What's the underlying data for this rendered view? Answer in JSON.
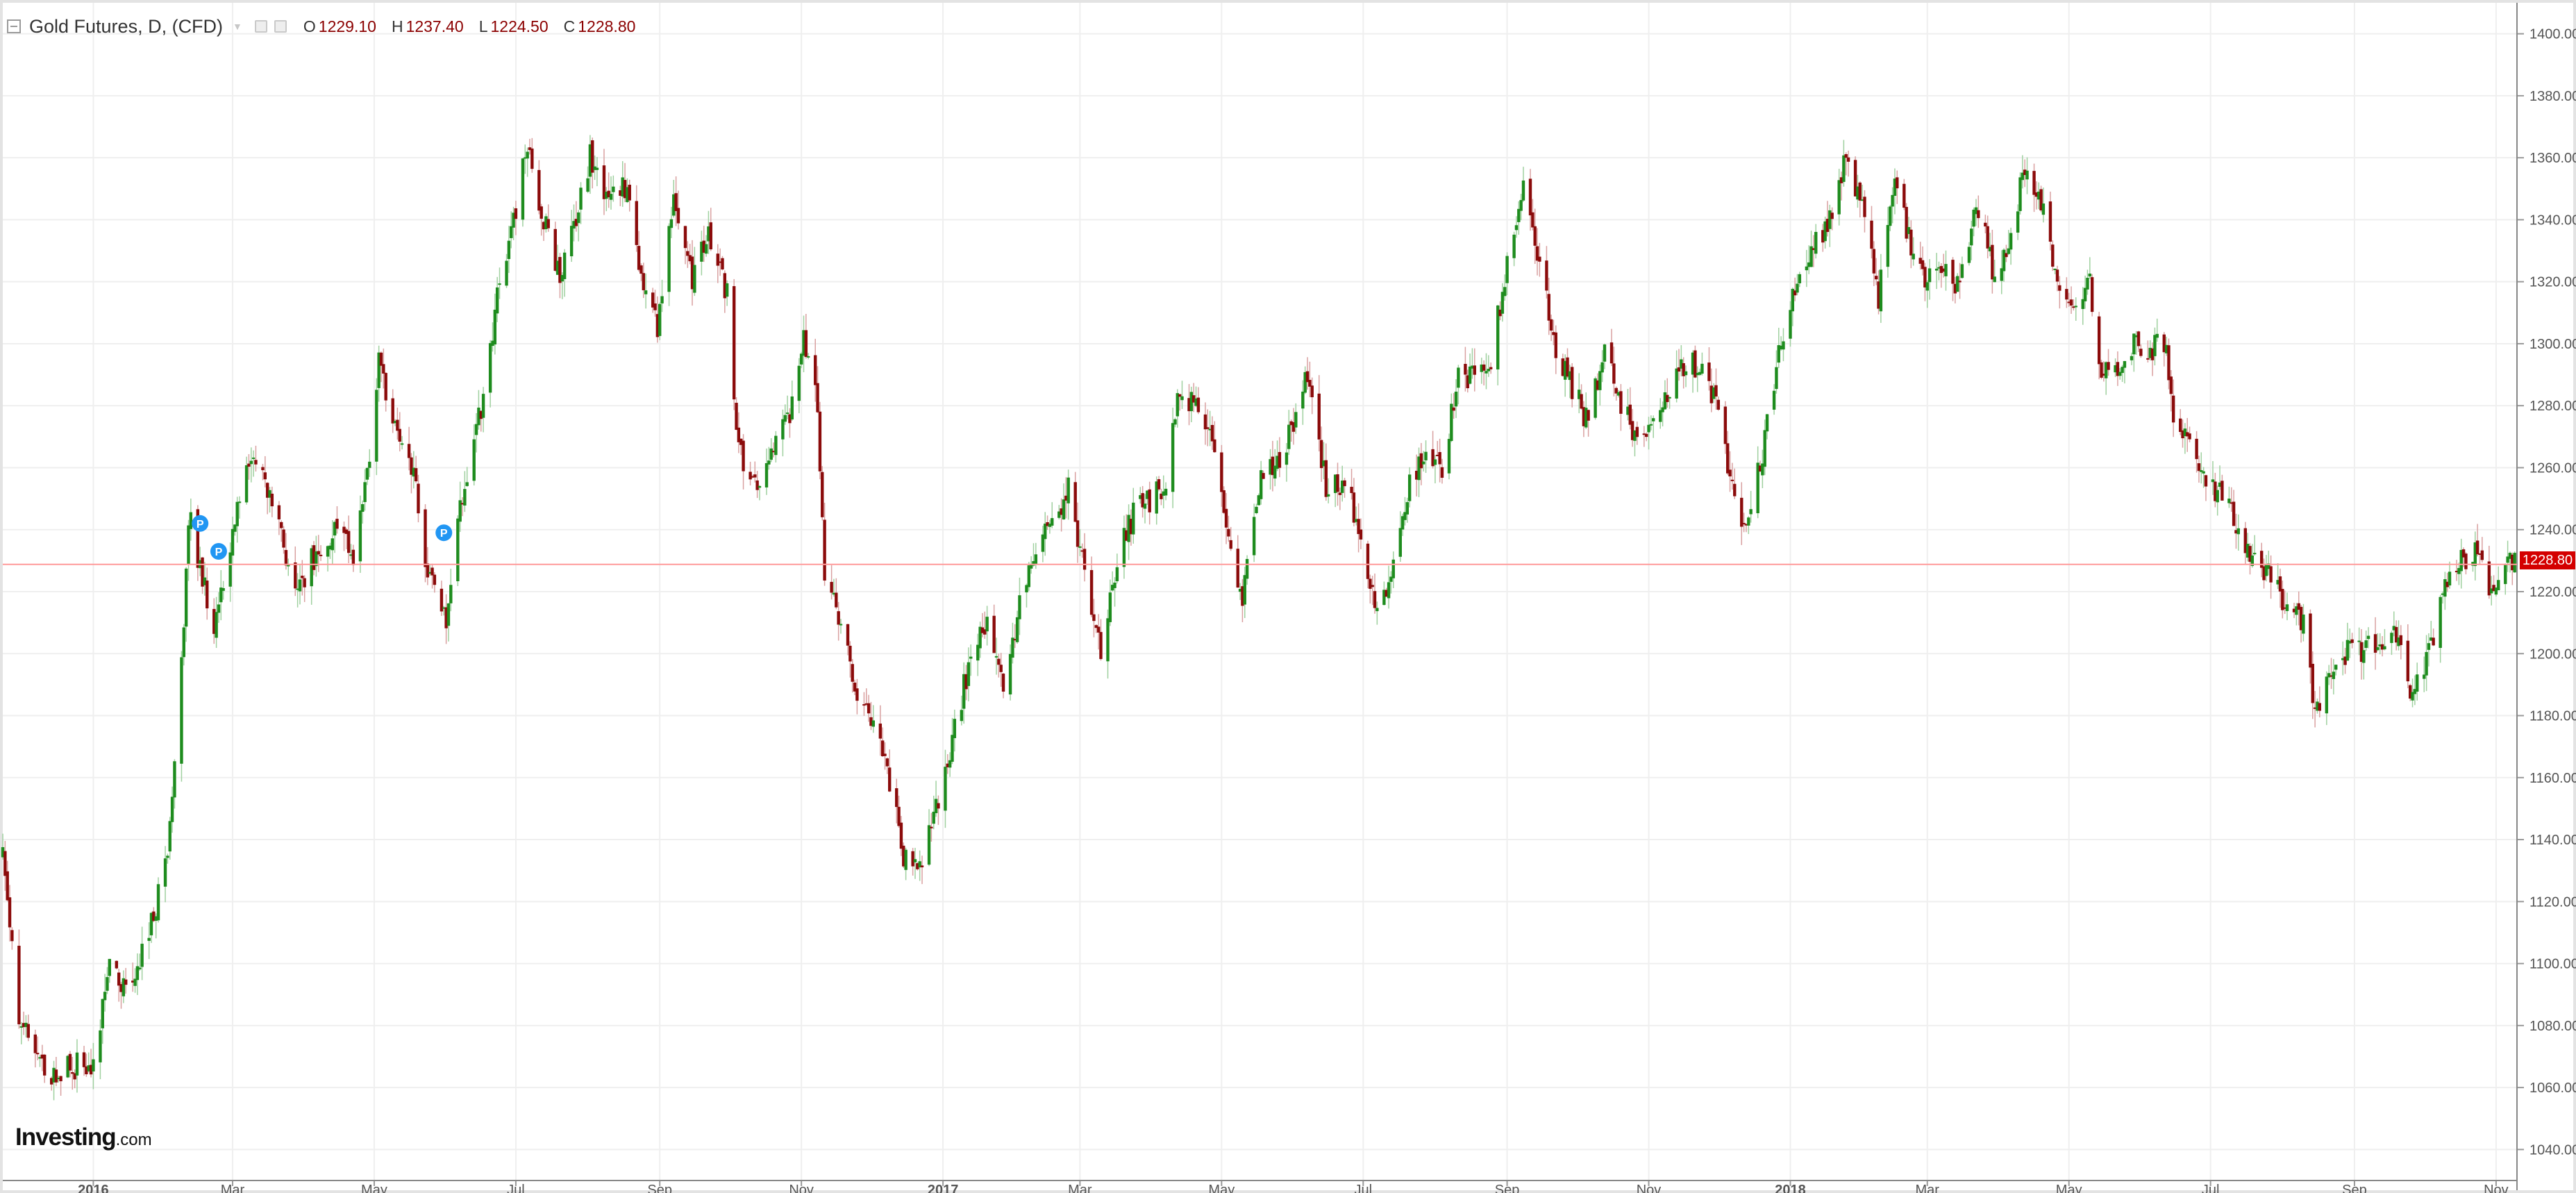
{
  "header": {
    "symbol_label": "Gold Futures, D, (CFD)",
    "ohlc": {
      "o_label": "O",
      "o": "1229.10",
      "h_label": "H",
      "h": "1237.40",
      "l_label": "L",
      "l": "1224.50",
      "c_label": "C",
      "c": "1228.80"
    }
  },
  "logo": {
    "main": "Investing",
    "domain": ".com"
  },
  "colors": {
    "up": "#1e8c1e",
    "down": "#8b0b0b",
    "grid": "#efefef",
    "axis": "#555555",
    "last_line": "#ff9b9b",
    "last_tag": "#d40000",
    "marker": "#2196f3"
  },
  "last_price": "1228.80",
  "markers": [
    {
      "label": "P",
      "date": "2016-02-16",
      "price": 1242
    },
    {
      "label": "P",
      "date": "2016-02-24",
      "price": 1233
    },
    {
      "label": "P",
      "date": "2016-05-31",
      "price": 1239
    }
  ],
  "chart_data": {
    "type": "ohlc",
    "title": "Gold Futures, D, (CFD)",
    "interval": "daily",
    "y_axis": {
      "position": "right",
      "range": [
        1030,
        1410
      ],
      "ticks": [
        "1040.00",
        "1060.00",
        "1080.00",
        "1100.00",
        "1120.00",
        "1140.00",
        "1160.00",
        "1180.00",
        "1200.00",
        "1220.00",
        "1240.00",
        "1260.00",
        "1280.00",
        "1300.00",
        "1320.00",
        "1340.00",
        "1360.00",
        "1380.00",
        "1400.00"
      ]
    },
    "x_axis": {
      "range": [
        "2015-11-23",
        "2018-11-10"
      ],
      "ticks": [
        {
          "label": "2016",
          "date": "2016-01-01",
          "bold": true
        },
        {
          "label": "Mar",
          "date": "2016-03-01"
        },
        {
          "label": "May",
          "date": "2016-05-01"
        },
        {
          "label": "Jul",
          "date": "2016-07-01"
        },
        {
          "label": "Sep",
          "date": "2016-09-01"
        },
        {
          "label": "Nov",
          "date": "2016-11-01"
        },
        {
          "label": "2017",
          "date": "2017-01-01",
          "bold": true
        },
        {
          "label": "Mar",
          "date": "2017-03-01"
        },
        {
          "label": "May",
          "date": "2017-05-01"
        },
        {
          "label": "Jul",
          "date": "2017-07-01"
        },
        {
          "label": "Sep",
          "date": "2017-09-01"
        },
        {
          "label": "Nov",
          "date": "2017-11-01"
        },
        {
          "label": "2018",
          "date": "2018-01-01",
          "bold": true
        },
        {
          "label": "Mar",
          "date": "2018-03-01"
        },
        {
          "label": "May",
          "date": "2018-05-01"
        },
        {
          "label": "Jul",
          "date": "2018-07-01"
        },
        {
          "label": "Sep",
          "date": "2018-09-01"
        },
        {
          "label": "Nov",
          "date": "2018-11-01"
        }
      ]
    },
    "grid": true,
    "price_path": [
      [
        "2015-11-23",
        1135
      ],
      [
        "2015-11-30",
        1080
      ],
      [
        "2015-12-07",
        1075
      ],
      [
        "2015-12-14",
        1062
      ],
      [
        "2015-12-21",
        1068
      ],
      [
        "2015-12-31",
        1065
      ],
      [
        "2016-01-08",
        1100
      ],
      [
        "2016-01-15",
        1090
      ],
      [
        "2016-01-25",
        1110
      ],
      [
        "2016-02-01",
        1130
      ],
      [
        "2016-02-08",
        1195
      ],
      [
        "2016-02-11",
        1245
      ],
      [
        "2016-02-15",
        1230
      ],
      [
        "2016-02-22",
        1210
      ],
      [
        "2016-02-29",
        1235
      ],
      [
        "2016-03-08",
        1262
      ],
      [
        "2016-03-14",
        1255
      ],
      [
        "2016-03-21",
        1240
      ],
      [
        "2016-03-28",
        1220
      ],
      [
        "2016-04-04",
        1230
      ],
      [
        "2016-04-14",
        1240
      ],
      [
        "2016-04-22",
        1232
      ],
      [
        "2016-04-29",
        1260
      ],
      [
        "2016-05-03",
        1295
      ],
      [
        "2016-05-09",
        1275
      ],
      [
        "2016-05-18",
        1260
      ],
      [
        "2016-05-24",
        1225
      ],
      [
        "2016-06-01",
        1210
      ],
      [
        "2016-06-07",
        1245
      ],
      [
        "2016-06-16",
        1280
      ],
      [
        "2016-06-24",
        1320
      ],
      [
        "2016-06-30",
        1340
      ],
      [
        "2016-07-06",
        1365
      ],
      [
        "2016-07-13",
        1340
      ],
      [
        "2016-07-20",
        1320
      ],
      [
        "2016-07-27",
        1340
      ],
      [
        "2016-08-02",
        1360
      ],
      [
        "2016-08-10",
        1345
      ],
      [
        "2016-08-17",
        1350
      ],
      [
        "2016-08-25",
        1320
      ],
      [
        "2016-08-31",
        1305
      ],
      [
        "2016-09-07",
        1345
      ],
      [
        "2016-09-15",
        1320
      ],
      [
        "2016-09-22",
        1335
      ],
      [
        "2016-09-30",
        1315
      ],
      [
        "2016-10-05",
        1265
      ],
      [
        "2016-10-12",
        1255
      ],
      [
        "2016-10-19",
        1265
      ],
      [
        "2016-10-26",
        1275
      ],
      [
        "2016-11-02",
        1300
      ],
      [
        "2016-11-08",
        1280
      ],
      [
        "2016-11-11",
        1225
      ],
      [
        "2016-11-18",
        1210
      ],
      [
        "2016-11-25",
        1185
      ],
      [
        "2016-12-02",
        1175
      ],
      [
        "2016-12-09",
        1160
      ],
      [
        "2016-12-15",
        1135
      ],
      [
        "2016-12-22",
        1130
      ],
      [
        "2016-12-29",
        1150
      ],
      [
        "2017-01-06",
        1175
      ],
      [
        "2017-01-13",
        1200
      ],
      [
        "2017-01-20",
        1210
      ],
      [
        "2017-01-27",
        1190
      ],
      [
        "2017-02-03",
        1215
      ],
      [
        "2017-02-10",
        1235
      ],
      [
        "2017-02-17",
        1240
      ],
      [
        "2017-02-24",
        1255
      ],
      [
        "2017-03-03",
        1225
      ],
      [
        "2017-03-10",
        1200
      ],
      [
        "2017-03-17",
        1230
      ],
      [
        "2017-03-24",
        1245
      ],
      [
        "2017-03-31",
        1250
      ],
      [
        "2017-04-07",
        1255
      ],
      [
        "2017-04-13",
        1285
      ],
      [
        "2017-04-21",
        1280
      ],
      [
        "2017-04-28",
        1265
      ],
      [
        "2017-05-05",
        1230
      ],
      [
        "2017-05-10",
        1218
      ],
      [
        "2017-05-17",
        1255
      ],
      [
        "2017-05-24",
        1260
      ],
      [
        "2017-06-02",
        1275
      ],
      [
        "2017-06-07",
        1290
      ],
      [
        "2017-06-15",
        1255
      ],
      [
        "2017-06-22",
        1255
      ],
      [
        "2017-06-30",
        1240
      ],
      [
        "2017-07-07",
        1212
      ],
      [
        "2017-07-14",
        1230
      ],
      [
        "2017-07-21",
        1255
      ],
      [
        "2017-07-28",
        1268
      ],
      [
        "2017-08-04",
        1260
      ],
      [
        "2017-08-11",
        1290
      ],
      [
        "2017-08-18",
        1290
      ],
      [
        "2017-08-25",
        1295
      ],
      [
        "2017-09-01",
        1325
      ],
      [
        "2017-09-08",
        1350
      ],
      [
        "2017-09-15",
        1325
      ],
      [
        "2017-09-22",
        1298
      ],
      [
        "2017-09-29",
        1285
      ],
      [
        "2017-10-06",
        1275
      ],
      [
        "2017-10-13",
        1300
      ],
      [
        "2017-10-20",
        1280
      ],
      [
        "2017-10-27",
        1270
      ],
      [
        "2017-11-03",
        1275
      ],
      [
        "2017-11-10",
        1285
      ],
      [
        "2017-11-17",
        1295
      ],
      [
        "2017-11-24",
        1290
      ],
      [
        "2017-12-01",
        1278
      ],
      [
        "2017-12-08",
        1250
      ],
      [
        "2017-12-13",
        1240
      ],
      [
        "2017-12-20",
        1265
      ],
      [
        "2017-12-29",
        1305
      ],
      [
        "2018-01-05",
        1320
      ],
      [
        "2018-01-12",
        1335
      ],
      [
        "2018-01-19",
        1340
      ],
      [
        "2018-01-25",
        1360
      ],
      [
        "2018-02-01",
        1345
      ],
      [
        "2018-02-08",
        1315
      ],
      [
        "2018-02-15",
        1355
      ],
      [
        "2018-02-22",
        1330
      ],
      [
        "2018-03-01",
        1320
      ],
      [
        "2018-03-08",
        1325
      ],
      [
        "2018-03-15",
        1318
      ],
      [
        "2018-03-22",
        1345
      ],
      [
        "2018-03-29",
        1325
      ],
      [
        "2018-04-05",
        1330
      ],
      [
        "2018-04-11",
        1355
      ],
      [
        "2018-04-18",
        1350
      ],
      [
        "2018-04-25",
        1320
      ],
      [
        "2018-05-03",
        1310
      ],
      [
        "2018-05-10",
        1320
      ],
      [
        "2018-05-15",
        1290
      ],
      [
        "2018-05-22",
        1290
      ],
      [
        "2018-05-29",
        1300
      ],
      [
        "2018-06-05",
        1298
      ],
      [
        "2018-06-12",
        1300
      ],
      [
        "2018-06-15",
        1275
      ],
      [
        "2018-06-22",
        1268
      ],
      [
        "2018-06-29",
        1255
      ],
      [
        "2018-07-06",
        1250
      ],
      [
        "2018-07-13",
        1240
      ],
      [
        "2018-07-20",
        1230
      ],
      [
        "2018-07-27",
        1225
      ],
      [
        "2018-08-03",
        1215
      ],
      [
        "2018-08-10",
        1210
      ],
      [
        "2018-08-15",
        1180
      ],
      [
        "2018-08-22",
        1195
      ],
      [
        "2018-08-29",
        1200
      ],
      [
        "2018-09-05",
        1200
      ],
      [
        "2018-09-12",
        1205
      ],
      [
        "2018-09-19",
        1205
      ],
      [
        "2018-09-26",
        1185
      ],
      [
        "2018-10-03",
        1200
      ],
      [
        "2018-10-10",
        1225
      ],
      [
        "2018-10-17",
        1230
      ],
      [
        "2018-10-24",
        1235
      ],
      [
        "2018-10-31",
        1218
      ],
      [
        "2018-11-05",
        1233
      ],
      [
        "2018-11-09",
        1228.8
      ]
    ]
  }
}
